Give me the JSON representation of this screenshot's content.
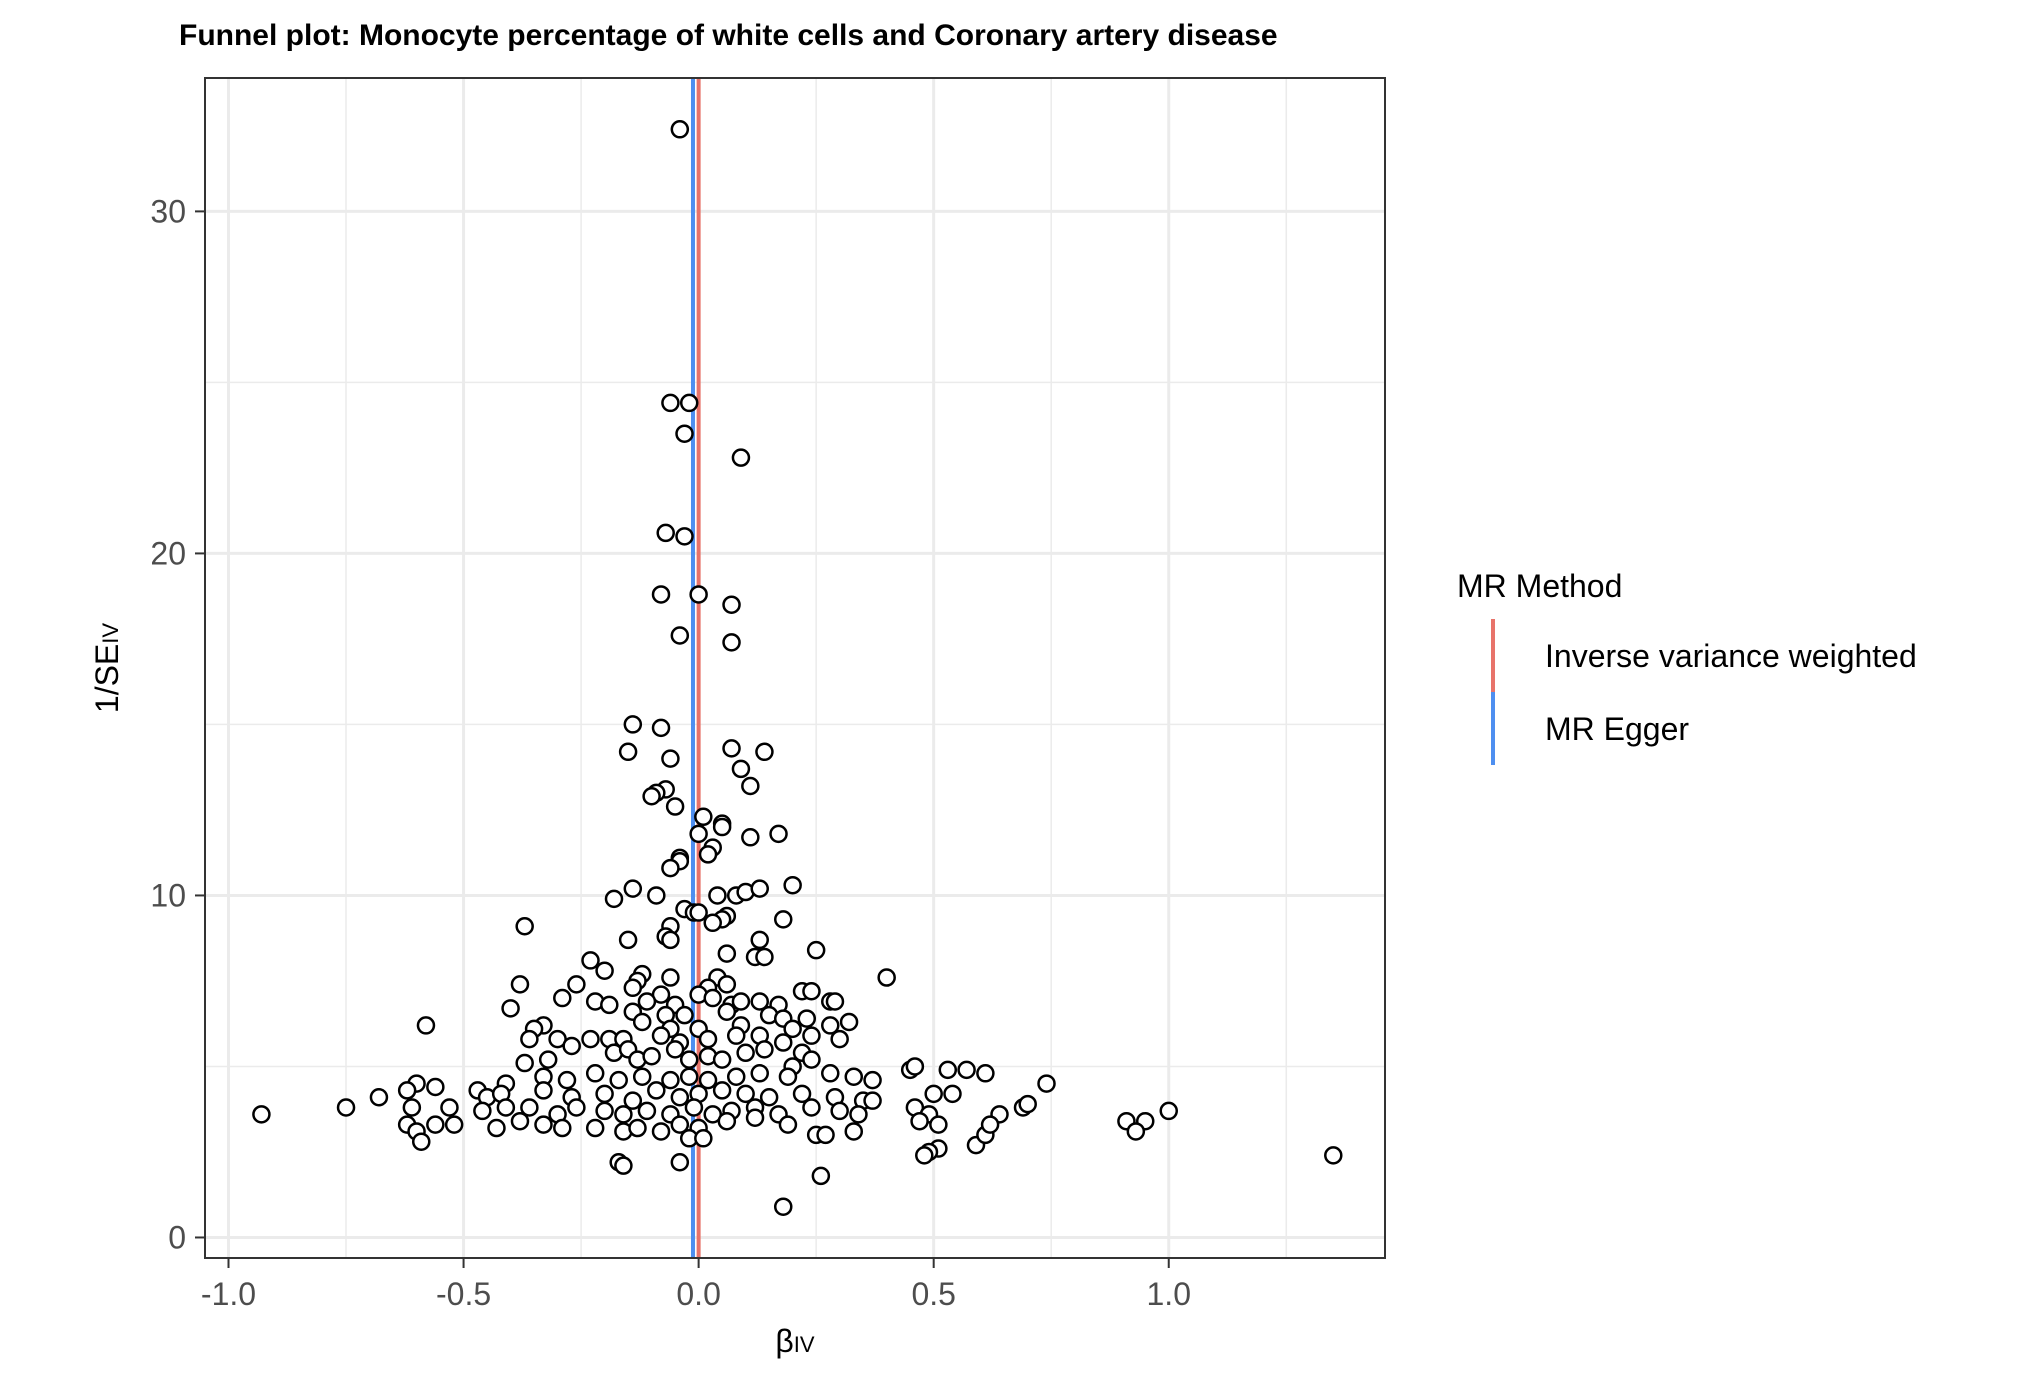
{
  "chart_data": {
    "type": "scatter",
    "title": "Funnel plot: Monocyte percentage of white cells and Coronary artery disease",
    "xlabel": {
      "main": "β",
      "sub": "IV"
    },
    "ylabel": {
      "main": "1/SE",
      "sub": "IV"
    },
    "xlim": [
      -1.05,
      1.46
    ],
    "ylim": [
      -0.6,
      33.9
    ],
    "x_ticks": [
      -1.0,
      -0.5,
      0.0,
      0.5,
      1.0
    ],
    "x_tick_labels": [
      "-1.0",
      "-0.5",
      "0.0",
      "0.5",
      "1.0"
    ],
    "y_ticks": [
      0,
      10,
      20,
      30
    ],
    "y_tick_labels": [
      "0",
      "10",
      "20",
      "30"
    ],
    "grid": true,
    "legend": {
      "title": "MR Method",
      "position": "right",
      "entries": [
        {
          "label": "Inverse variance weighted",
          "color": "#e8736a",
          "x": 0.0
        },
        {
          "label": "MR Egger",
          "color": "#4e8ff0",
          "x": -0.012
        }
      ]
    },
    "point_style": {
      "fill": "#ffffff",
      "stroke": "#000000"
    },
    "points": [
      [
        -0.04,
        32.4
      ],
      [
        -0.06,
        24.4
      ],
      [
        -0.02,
        24.4
      ],
      [
        -0.03,
        23.5
      ],
      [
        0.09,
        22.8
      ],
      [
        -0.07,
        20.6
      ],
      [
        -0.03,
        20.5
      ],
      [
        -0.08,
        18.8
      ],
      [
        0.0,
        18.8
      ],
      [
        0.07,
        18.5
      ],
      [
        -0.04,
        17.6
      ],
      [
        0.07,
        17.4
      ],
      [
        -0.14,
        15.0
      ],
      [
        -0.08,
        14.9
      ],
      [
        -0.15,
        14.2
      ],
      [
        -0.06,
        14.0
      ],
      [
        0.07,
        14.3
      ],
      [
        0.14,
        14.2
      ],
      [
        0.09,
        13.7
      ],
      [
        0.11,
        13.2
      ],
      [
        -0.07,
        13.1
      ],
      [
        -0.09,
        13.0
      ],
      [
        -0.1,
        12.9
      ],
      [
        -0.05,
        12.6
      ],
      [
        0.01,
        12.3
      ],
      [
        0.05,
        12.1
      ],
      [
        0.05,
        12.0
      ],
      [
        0.0,
        11.8
      ],
      [
        0.11,
        11.7
      ],
      [
        0.17,
        11.8
      ],
      [
        0.03,
        11.4
      ],
      [
        0.02,
        11.2
      ],
      [
        -0.04,
        11.1
      ],
      [
        -0.04,
        11.0
      ],
      [
        -0.06,
        10.8
      ],
      [
        -0.14,
        10.2
      ],
      [
        -0.18,
        9.9
      ],
      [
        -0.09,
        10.0
      ],
      [
        0.04,
        10.0
      ],
      [
        0.08,
        10.0
      ],
      [
        0.1,
        10.1
      ],
      [
        0.13,
        10.2
      ],
      [
        0.2,
        10.3
      ],
      [
        -0.03,
        9.6
      ],
      [
        -0.01,
        9.5
      ],
      [
        0.0,
        9.5
      ],
      [
        0.06,
        9.4
      ],
      [
        0.05,
        9.3
      ],
      [
        0.03,
        9.2
      ],
      [
        0.18,
        9.3
      ],
      [
        -0.37,
        9.1
      ],
      [
        -0.06,
        9.1
      ],
      [
        -0.07,
        8.8
      ],
      [
        -0.06,
        8.7
      ],
      [
        -0.15,
        8.7
      ],
      [
        0.13,
        8.7
      ],
      [
        0.25,
        8.4
      ],
      [
        0.06,
        8.3
      ],
      [
        0.12,
        8.2
      ],
      [
        0.14,
        8.2
      ],
      [
        -0.23,
        8.1
      ],
      [
        -0.2,
        7.8
      ],
      [
        -0.12,
        7.7
      ],
      [
        -0.06,
        7.6
      ],
      [
        -0.13,
        7.5
      ],
      [
        0.04,
        7.6
      ],
      [
        0.06,
        7.4
      ],
      [
        0.02,
        7.3
      ],
      [
        0.4,
        7.6
      ],
      [
        -0.38,
        7.4
      ],
      [
        -0.26,
        7.4
      ],
      [
        -0.14,
        7.3
      ],
      [
        -0.08,
        7.1
      ],
      [
        0.0,
        7.1
      ],
      [
        0.03,
        7.0
      ],
      [
        0.22,
        7.2
      ],
      [
        0.24,
        7.2
      ],
      [
        -0.29,
        7.0
      ],
      [
        -0.22,
        6.9
      ],
      [
        -0.19,
        6.8
      ],
      [
        -0.11,
        6.9
      ],
      [
        -0.05,
        6.8
      ],
      [
        0.07,
        6.8
      ],
      [
        0.09,
        6.9
      ],
      [
        0.13,
        6.9
      ],
      [
        0.17,
        6.8
      ],
      [
        0.28,
        6.9
      ],
      [
        0.29,
        6.9
      ],
      [
        -0.4,
        6.7
      ],
      [
        -0.14,
        6.6
      ],
      [
        -0.07,
        6.5
      ],
      [
        -0.03,
        6.5
      ],
      [
        0.06,
        6.6
      ],
      [
        0.15,
        6.5
      ],
      [
        0.18,
        6.4
      ],
      [
        0.23,
        6.4
      ],
      [
        -0.58,
        6.2
      ],
      [
        -0.33,
        6.2
      ],
      [
        -0.35,
        6.1
      ],
      [
        -0.12,
        6.3
      ],
      [
        -0.06,
        6.1
      ],
      [
        0.0,
        6.1
      ],
      [
        0.09,
        6.2
      ],
      [
        0.2,
        6.1
      ],
      [
        0.28,
        6.2
      ],
      [
        0.32,
        6.3
      ],
      [
        -0.36,
        5.8
      ],
      [
        -0.3,
        5.8
      ],
      [
        -0.27,
        5.6
      ],
      [
        -0.23,
        5.8
      ],
      [
        -0.19,
        5.8
      ],
      [
        -0.16,
        5.8
      ],
      [
        -0.08,
        5.9
      ],
      [
        -0.04,
        5.7
      ],
      [
        0.02,
        5.8
      ],
      [
        0.08,
        5.9
      ],
      [
        0.13,
        5.9
      ],
      [
        0.24,
        5.9
      ],
      [
        0.18,
        5.7
      ],
      [
        0.3,
        5.8
      ],
      [
        -0.37,
        5.1
      ],
      [
        -0.32,
        5.2
      ],
      [
        -0.18,
        5.4
      ],
      [
        -0.15,
        5.5
      ],
      [
        -0.13,
        5.2
      ],
      [
        -0.1,
        5.3
      ],
      [
        -0.05,
        5.5
      ],
      [
        -0.02,
        5.2
      ],
      [
        0.02,
        5.3
      ],
      [
        0.05,
        5.2
      ],
      [
        0.1,
        5.4
      ],
      [
        0.14,
        5.5
      ],
      [
        0.22,
        5.4
      ],
      [
        0.24,
        5.2
      ],
      [
        0.2,
        5.0
      ],
      [
        -0.6,
        4.5
      ],
      [
        -0.56,
        4.4
      ],
      [
        -0.47,
        4.3
      ],
      [
        -0.41,
        4.5
      ],
      [
        -0.33,
        4.7
      ],
      [
        -0.28,
        4.6
      ],
      [
        -0.22,
        4.8
      ],
      [
        -0.17,
        4.6
      ],
      [
        -0.12,
        4.7
      ],
      [
        -0.06,
        4.6
      ],
      [
        -0.02,
        4.7
      ],
      [
        0.02,
        4.6
      ],
      [
        0.08,
        4.7
      ],
      [
        0.13,
        4.8
      ],
      [
        0.19,
        4.7
      ],
      [
        0.28,
        4.8
      ],
      [
        0.33,
        4.7
      ],
      [
        0.37,
        4.6
      ],
      [
        0.45,
        4.9
      ],
      [
        0.46,
        5.0
      ],
      [
        0.53,
        4.9
      ],
      [
        0.57,
        4.9
      ],
      [
        0.61,
        4.8
      ],
      [
        0.74,
        4.5
      ],
      [
        -0.62,
        4.3
      ],
      [
        -0.45,
        4.1
      ],
      [
        -0.42,
        4.2
      ],
      [
        -0.33,
        4.3
      ],
      [
        -0.27,
        4.1
      ],
      [
        -0.2,
        4.2
      ],
      [
        -0.14,
        4.0
      ],
      [
        -0.09,
        4.3
      ],
      [
        -0.04,
        4.1
      ],
      [
        0.0,
        4.2
      ],
      [
        0.05,
        4.3
      ],
      [
        0.1,
        4.2
      ],
      [
        0.15,
        4.1
      ],
      [
        0.22,
        4.2
      ],
      [
        0.29,
        4.1
      ],
      [
        0.35,
        4.0
      ],
      [
        0.37,
        4.0
      ],
      [
        0.5,
        4.2
      ],
      [
        0.54,
        4.2
      ],
      [
        -0.68,
        4.1
      ],
      [
        -0.93,
        3.6
      ],
      [
        -0.75,
        3.8
      ],
      [
        -0.61,
        3.8
      ],
      [
        -0.53,
        3.8
      ],
      [
        -0.46,
        3.7
      ],
      [
        -0.41,
        3.8
      ],
      [
        -0.36,
        3.8
      ],
      [
        -0.3,
        3.6
      ],
      [
        -0.26,
        3.8
      ],
      [
        -0.2,
        3.7
      ],
      [
        -0.16,
        3.6
      ],
      [
        -0.11,
        3.7
      ],
      [
        -0.06,
        3.6
      ],
      [
        -0.01,
        3.8
      ],
      [
        0.03,
        3.6
      ],
      [
        0.07,
        3.7
      ],
      [
        0.12,
        3.8
      ],
      [
        0.17,
        3.6
      ],
      [
        0.24,
        3.8
      ],
      [
        0.3,
        3.7
      ],
      [
        0.34,
        3.6
      ],
      [
        0.46,
        3.8
      ],
      [
        0.49,
        3.6
      ],
      [
        0.64,
        3.6
      ],
      [
        0.69,
        3.8
      ],
      [
        0.7,
        3.9
      ],
      [
        1.0,
        3.7
      ],
      [
        0.91,
        3.4
      ],
      [
        0.95,
        3.4
      ],
      [
        -0.62,
        3.3
      ],
      [
        -0.56,
        3.3
      ],
      [
        -0.52,
        3.3
      ],
      [
        -0.43,
        3.2
      ],
      [
        -0.38,
        3.4
      ],
      [
        -0.33,
        3.3
      ],
      [
        -0.29,
        3.2
      ],
      [
        -0.22,
        3.2
      ],
      [
        -0.16,
        3.1
      ],
      [
        -0.13,
        3.2
      ],
      [
        -0.08,
        3.1
      ],
      [
        -0.04,
        3.3
      ],
      [
        0.0,
        3.2
      ],
      [
        0.06,
        3.4
      ],
      [
        0.12,
        3.5
      ],
      [
        0.19,
        3.3
      ],
      [
        0.25,
        3.0
      ],
      [
        0.27,
        3.0
      ],
      [
        0.33,
        3.1
      ],
      [
        0.47,
        3.4
      ],
      [
        0.51,
        3.3
      ],
      [
        0.59,
        2.7
      ],
      [
        0.61,
        3.0
      ],
      [
        0.62,
        3.3
      ],
      [
        0.93,
        3.1
      ],
      [
        -0.6,
        3.1
      ],
      [
        -0.59,
        2.8
      ],
      [
        -0.02,
        2.9
      ],
      [
        0.01,
        2.9
      ],
      [
        0.51,
        2.6
      ],
      [
        0.49,
        2.5
      ],
      [
        0.48,
        2.4
      ],
      [
        1.35,
        2.4
      ],
      [
        -0.17,
        2.2
      ],
      [
        -0.16,
        2.1
      ],
      [
        -0.04,
        2.2
      ],
      [
        0.26,
        1.8
      ],
      [
        0.18,
        0.9
      ]
    ]
  }
}
